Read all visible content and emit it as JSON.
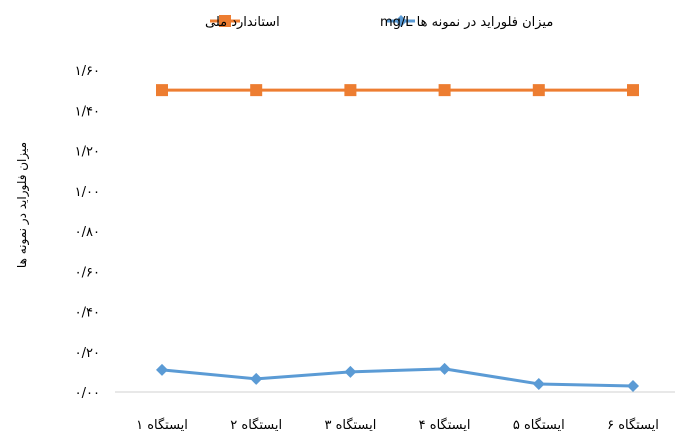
{
  "chart_data": {
    "type": "line",
    "title": "",
    "xlabel": "",
    "ylabel": "میزان فلوراید در نمونه ها",
    "categories": [
      "ایستگاه ۱",
      "ایستگاه ۲",
      "ایستگاه ۳",
      "ایستگاه ۴",
      "ایستگاه ۵",
      "ایستگاه ۶"
    ],
    "ylim": [
      0,
      1.6
    ],
    "y_ticks": [
      {
        "value": 0.0,
        "label": "۰/۰۰"
      },
      {
        "value": 0.2,
        "label": "۰/۲۰"
      },
      {
        "value": 0.4,
        "label": "۰/۴۰"
      },
      {
        "value": 0.6,
        "label": "۰/۶۰"
      },
      {
        "value": 0.8,
        "label": "۰/۸۰"
      },
      {
        "value": 1.0,
        "label": "۱/۰۰"
      },
      {
        "value": 1.2,
        "label": "۱/۲۰"
      },
      {
        "value": 1.4,
        "label": "۱/۴۰"
      },
      {
        "value": 1.6,
        "label": "۱/۶۰"
      }
    ],
    "grid": false,
    "legend_position": "top",
    "series": [
      {
        "name": "میزان فلوراید در نمونه ها mg/L",
        "color": "#5B9BD5",
        "marker": "diamond",
        "values": [
          0.11,
          0.065,
          0.1,
          0.115,
          0.04,
          0.03
        ]
      },
      {
        "name": "استاندارد ملی",
        "color": "#ED7D31",
        "marker": "square",
        "values": [
          1.5,
          1.5,
          1.5,
          1.5,
          1.5,
          1.5
        ]
      }
    ]
  }
}
